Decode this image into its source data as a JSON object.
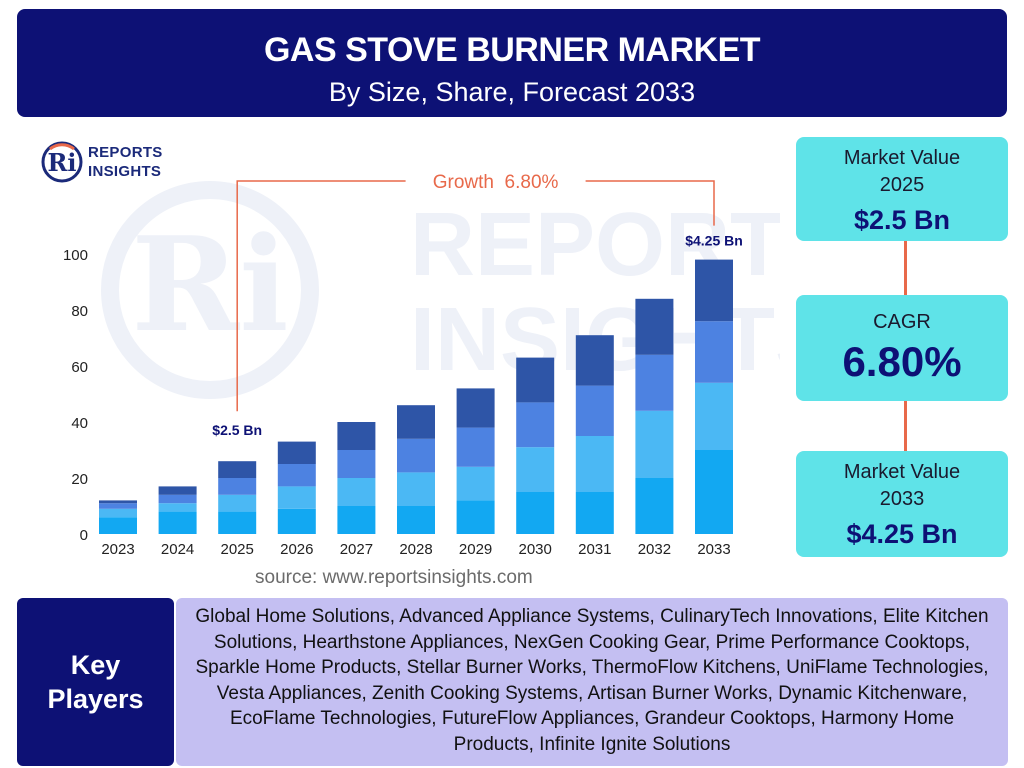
{
  "header": {
    "title": "GAS STOVE BURNER MARKET",
    "subtitle": "By Size, Share, Forecast 2033"
  },
  "logo": {
    "mark": "Ri",
    "line1": "REPORTS",
    "line2": "INSIGHTS"
  },
  "watermark": {
    "mark": "Ri",
    "line1": "REPORTS",
    "line2": "INSIGHTS"
  },
  "chart_data": {
    "type": "bar",
    "stacked": true,
    "categories": [
      "2023",
      "2024",
      "2025",
      "2026",
      "2027",
      "2028",
      "2029",
      "2030",
      "2031",
      "2032",
      "2033"
    ],
    "series": [
      {
        "values": [
          6,
          8,
          8,
          9,
          10,
          10,
          12,
          15,
          15,
          20,
          30
        ]
      },
      {
        "values": [
          3,
          3,
          6,
          8,
          10,
          12,
          12,
          16,
          20,
          24,
          24
        ]
      },
      {
        "values": [
          2,
          3,
          6,
          8,
          10,
          12,
          14,
          16,
          18,
          20,
          22
        ]
      },
      {
        "values": [
          1,
          3,
          6,
          8,
          10,
          12,
          14,
          16,
          18,
          20,
          22
        ]
      }
    ],
    "series_colors": [
      "#12a8f2",
      "#4bb8f4",
      "#4d82e1",
      "#2e55a7"
    ],
    "ylim": [
      0,
      100
    ],
    "yticks": [
      0,
      20,
      40,
      60,
      80,
      100
    ],
    "grid": false,
    "annotations": {
      "start_label": "$2.5 Bn",
      "start_category": "2025",
      "end_label": "$4.25 Bn",
      "end_category": "2033",
      "growth_label": "Growth  6.80%"
    }
  },
  "source": "source: www.reportsinsights.com",
  "cards": {
    "value_2025_label": "Market Value\n2025",
    "value_2025": "$2.5 Bn",
    "cagr_label": "CAGR",
    "cagr_value": "6.80%",
    "value_2033_label": "Market Value\n2033",
    "value_2033": "$4.25 Bn"
  },
  "key_players": {
    "title": "Key\nPlayers",
    "list": "Global Home Solutions, Advanced Appliance Systems, CulinaryTech Innovations, Elite Kitchen Solutions, Hearthstone Appliances, NexGen Cooking Gear, Prime Performance Cooktops, Sparkle Home Products, Stellar Burner Works, ThermoFlow Kitchens, UniFlame Technologies, Vesta Appliances, Zenith Cooking Systems, Artisan Burner Works, Dynamic Kitchenware, EcoFlame Technologies, FutureFlow Appliances, Grandeur Cooktops, Harmony Home Products, Infinite Ignite Solutions"
  },
  "colors": {
    "header_bg": "#0d1175",
    "card_bg": "#5fe3e8",
    "accent": "#e8694a",
    "players_bg": "#c4bff2"
  }
}
